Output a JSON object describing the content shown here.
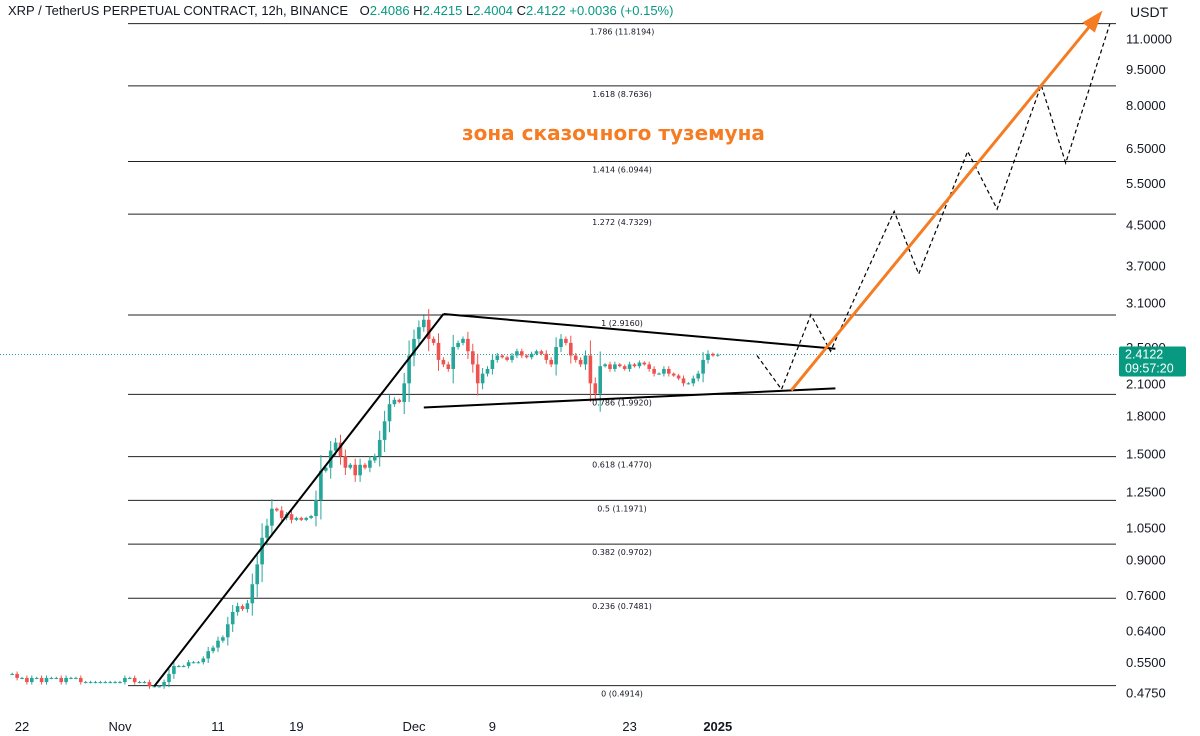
{
  "header": {
    "symbol": "XRP / TetherUS PERPETUAL CONTRACT, 12h, BINANCE",
    "o_label": "O",
    "o_value": "2.4086",
    "h_label": "H",
    "h_value": "2.4215",
    "l_label": "L",
    "l_value": "2.4004",
    "c_label": "C",
    "c_value": "2.4122",
    "change": "+0.0036 (+0.15%)"
  },
  "price_axis_unit": "USDT",
  "current_price": {
    "value": "2.4122",
    "countdown": "09:57:20",
    "color": "#089981"
  },
  "colors": {
    "up": "#26a69a",
    "down": "#ef5350",
    "arrow": "#f57c22",
    "annotation": "#f57c22",
    "fib_line": "#222222"
  },
  "chart_data": {
    "type": "candlestick",
    "y_scale": "log",
    "ylim": [
      0.45,
      12.5
    ],
    "y_ticks": [
      "11.0000",
      "9.5000",
      "8.0000",
      "6.5000",
      "5.5000",
      "4.5000",
      "3.7000",
      "3.1000",
      "2.5000",
      "2.1000",
      "1.8000",
      "1.5000",
      "1.2500",
      "1.0500",
      "0.9000",
      "0.7600",
      "0.6400",
      "0.5500",
      "0.4750"
    ],
    "x_ticks": [
      {
        "label": "22",
        "day": -10
      },
      {
        "label": "Nov",
        "day": 0
      },
      {
        "label": "11",
        "day": 10
      },
      {
        "label": "19",
        "day": 18
      },
      {
        "label": "Dec",
        "day": 30
      },
      {
        "label": "9",
        "day": 38
      },
      {
        "label": "23",
        "day": 52
      },
      {
        "label": "2025",
        "day": 61
      }
    ],
    "xlim_days": [
      -11,
      97
    ],
    "fib_levels": [
      {
        "ratio": "0",
        "price": 0.4914,
        "label": "0 (0.4914)"
      },
      {
        "ratio": "0.236",
        "price": 0.7481,
        "label": "0.236 (0.7481)"
      },
      {
        "ratio": "0.382",
        "price": 0.9702,
        "label": "0.382 (0.9702)"
      },
      {
        "ratio": "0.5",
        "price": 1.1971,
        "label": "0.5 (1.1971)"
      },
      {
        "ratio": "0.618",
        "price": 1.477,
        "label": "0.618 (1.4770)"
      },
      {
        "ratio": "0.786",
        "price": 1.992,
        "label": "0.786 (1.9920)"
      },
      {
        "ratio": "1",
        "price": 2.916,
        "label": "1 (2.9160)"
      },
      {
        "ratio": "1.272",
        "price": 4.7329,
        "label": "1.272 (4.7329)"
      },
      {
        "ratio": "1.414",
        "price": 6.0944,
        "label": "1.414 (6.0944)"
      },
      {
        "ratio": "1.618",
        "price": 8.7636,
        "label": "1.618 (8.7636)"
      },
      {
        "ratio": "1.786",
        "price": 11.8194,
        "label": "1.786 (11.8194)"
      }
    ],
    "annotation": "зона сказочного туземуна",
    "closes": [
      0.52,
      0.51,
      0.51,
      0.5,
      0.51,
      0.51,
      0.5,
      0.51,
      0.51,
      0.51,
      0.5,
      0.51,
      0.51,
      0.51,
      0.5,
      0.5,
      0.5,
      0.5,
      0.5,
      0.5,
      0.5,
      0.5,
      0.5,
      0.51,
      0.51,
      0.5,
      0.5,
      0.5,
      0.49,
      0.49,
      0.49,
      0.5,
      0.52,
      0.54,
      0.54,
      0.54,
      0.55,
      0.55,
      0.55,
      0.56,
      0.58,
      0.59,
      0.61,
      0.62,
      0.66,
      0.7,
      0.72,
      0.71,
      0.73,
      0.8,
      0.88,
      1.0,
      1.06,
      1.15,
      1.14,
      1.1,
      1.12,
      1.09,
      1.1,
      1.09,
      1.1,
      1.11,
      1.2,
      1.38,
      1.4,
      1.52,
      1.58,
      1.48,
      1.4,
      1.42,
      1.35,
      1.42,
      1.4,
      1.45,
      1.48,
      1.6,
      1.75,
      1.9,
      1.94,
      1.92,
      2.1,
      2.4,
      2.6,
      2.75,
      2.85,
      2.6,
      2.55,
      2.35,
      2.3,
      2.25,
      2.5,
      2.55,
      2.6,
      2.45,
      2.3,
      2.1,
      2.2,
      2.25,
      2.35,
      2.4,
      2.38,
      2.35,
      2.4,
      2.45,
      2.4,
      2.38,
      2.42,
      2.45,
      2.42,
      2.35,
      2.3,
      2.5,
      2.6,
      2.55,
      2.4,
      2.35,
      2.3,
      2.4,
      2.1,
      2.0,
      2.28,
      2.3,
      2.25,
      2.3,
      2.28,
      2.25,
      2.3,
      2.28,
      2.32,
      2.3,
      2.25,
      2.2,
      2.2,
      2.25,
      2.2,
      2.18,
      2.15,
      2.1,
      2.1,
      2.15,
      2.2,
      2.35,
      2.42,
      2.4,
      2.41
    ],
    "projection_path": [
      {
        "day": 65.0,
        "price": 2.4
      },
      {
        "day": 67.5,
        "price": 2.04
      },
      {
        "day": 70.5,
        "price": 2.92
      },
      {
        "day": 72.5,
        "price": 2.45
      },
      {
        "day": 79.0,
        "price": 4.8
      },
      {
        "day": 81.5,
        "price": 3.55
      },
      {
        "day": 86.5,
        "price": 6.4
      },
      {
        "day": 89.5,
        "price": 4.85
      },
      {
        "day": 94.0,
        "price": 8.8
      },
      {
        "day": 96.5,
        "price": 6.05
      },
      {
        "day": 101.0,
        "price": 11.8
      }
    ]
  }
}
